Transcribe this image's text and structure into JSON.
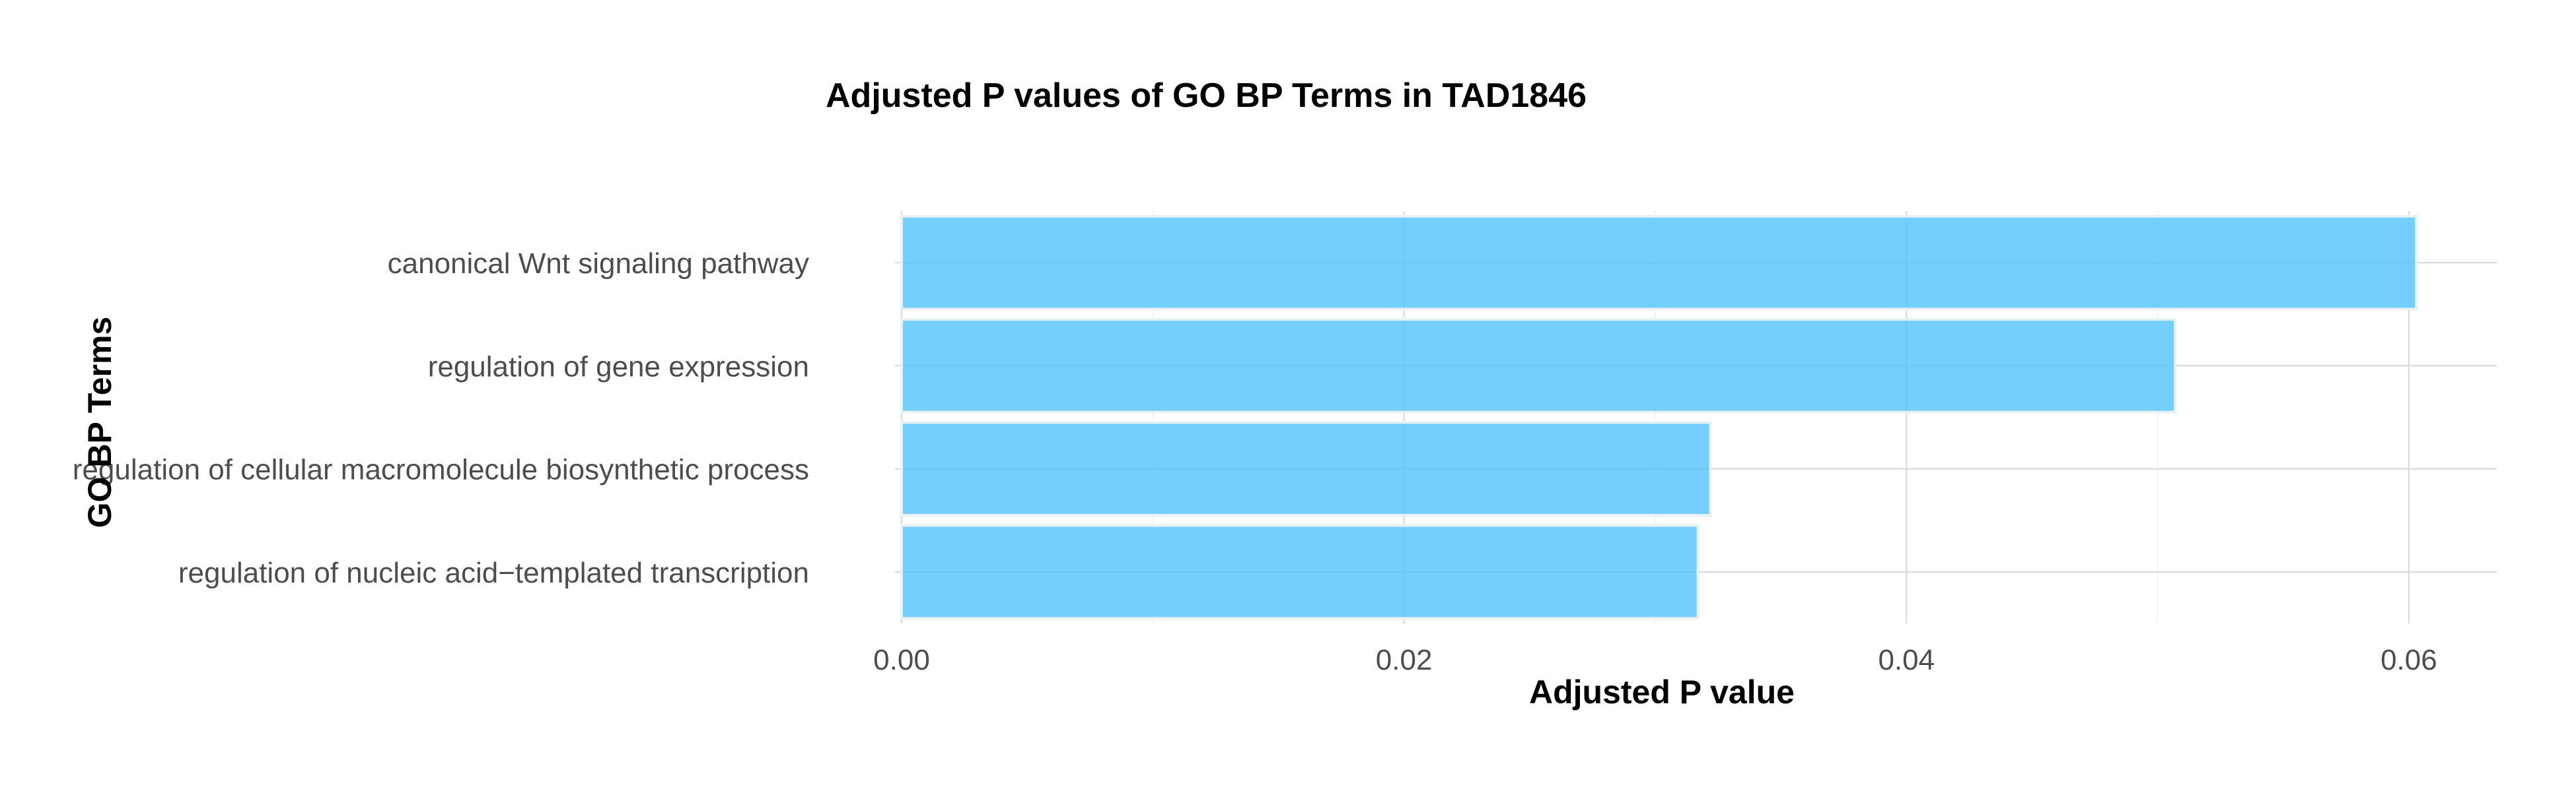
{
  "chart_data": {
    "type": "bar",
    "orientation": "horizontal",
    "title": "Adjusted P values of GO BP Terms in TAD1846",
    "xlabel": "Adjusted P value",
    "ylabel": "GO BP Terms",
    "categories": [
      "canonical Wnt signaling pathway",
      "regulation of gene expression",
      "regulation of cellular macromolecule biosynthetic process",
      "regulation of nucleic acid−templated transcription"
    ],
    "values": [
      0.0603,
      0.0507,
      0.0322,
      0.0317
    ],
    "xlim": [
      0,
      0.0635
    ],
    "xticks": [
      0.0,
      0.02,
      0.04,
      0.06
    ],
    "xtick_labels": [
      "0.00",
      "0.02",
      "0.04",
      "0.06"
    ],
    "grid": true,
    "legend": "none",
    "bar_color": "#56c4fb"
  }
}
